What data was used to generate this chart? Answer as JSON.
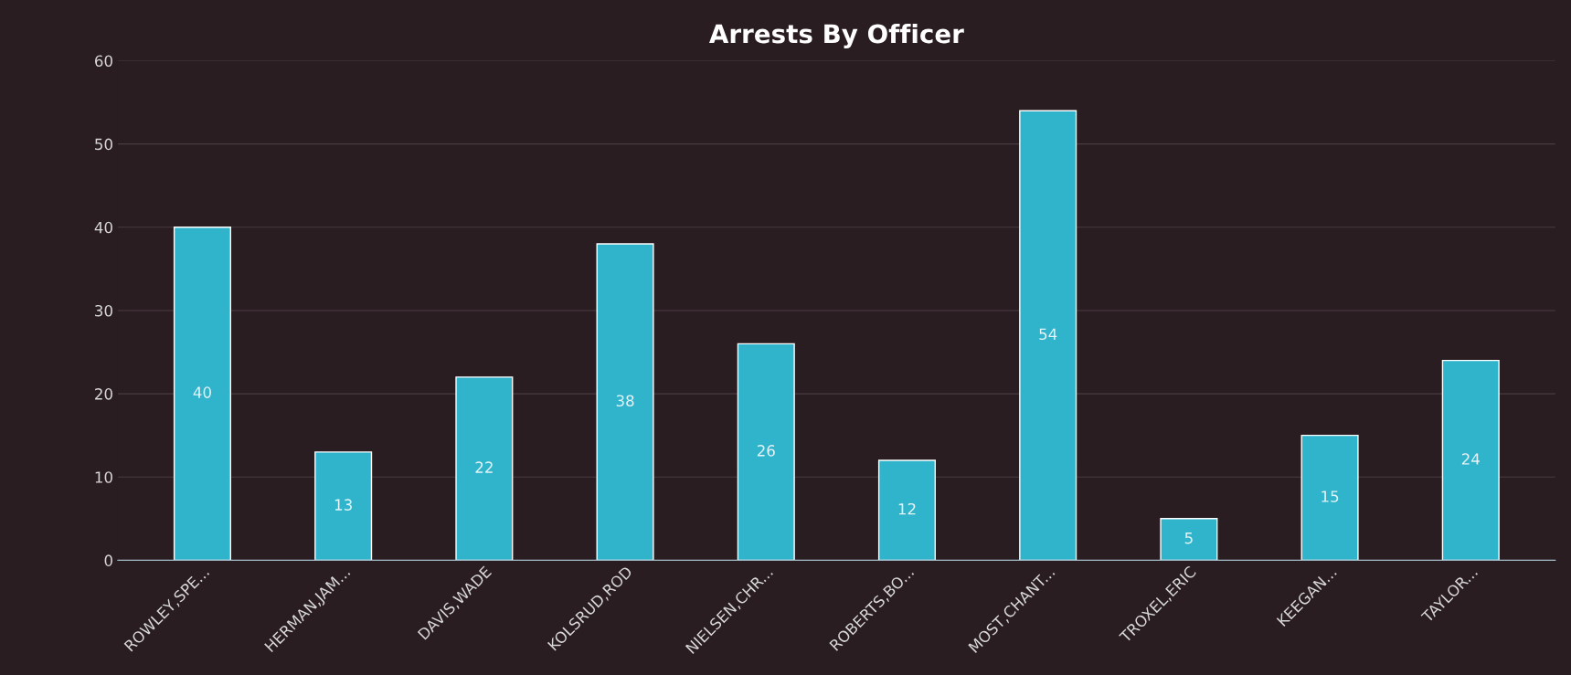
{
  "chart_data": {
    "type": "bar",
    "title": "Arrests By Officer",
    "categories": [
      "ROWLEY,SPE...",
      "HERMAN,JAM...",
      "DAVIS,WADE",
      "KOLSRUD,ROD",
      "NIELSEN,CHR...",
      "ROBERTS,BO...",
      "MOST,CHANT...",
      "TROXEL,ERIC",
      "KEEGAN...",
      "TAYLOR..."
    ],
    "values": [
      40,
      13,
      22,
      38,
      26,
      12,
      54,
      5,
      15,
      24
    ],
    "color": "#2fb4cb",
    "ylim": [
      0,
      60
    ],
    "yticks": [
      0,
      10,
      20,
      30,
      40,
      50,
      60
    ],
    "grid": "y",
    "data_labels": true
  }
}
